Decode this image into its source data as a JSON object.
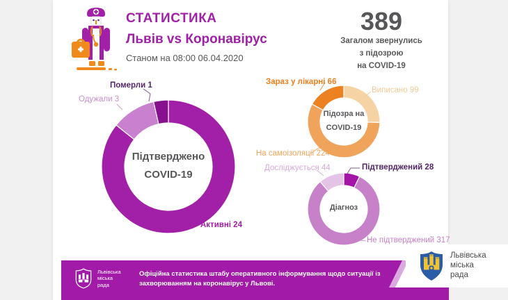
{
  "header": {
    "title": "СТАТИСТИКА",
    "subtitle": "Львів vs Коронавірус",
    "date_line": "Станом на 08:00 06.04.2020",
    "icon": "doctor-icon"
  },
  "total": {
    "value": "389",
    "caption_lines": [
      "Загалом звернулись",
      "з підозрою",
      "на COVID-19"
    ]
  },
  "chart_data": [
    {
      "type": "pie",
      "name": "confirmed-covid19-donut",
      "center_label": [
        "Підтверджено",
        "COVID-19"
      ],
      "total": 28,
      "legend_position": "outside-callouts",
      "slices": [
        {
          "label": "Активні",
          "value": 24,
          "color": "#A120A7",
          "label_text": "Активні 24",
          "label_color": "#A120A7"
        },
        {
          "label": "Одужали",
          "value": 3,
          "color": "#C980CE",
          "label_text": "Одужали 3",
          "label_color": "#C98FCE"
        },
        {
          "label": "Померли",
          "value": 1,
          "color": "#87108E",
          "label_text": "Померли 1",
          "label_color": "#53256B"
        }
      ]
    },
    {
      "type": "pie",
      "name": "suspicion-covid19-donut",
      "center_label": [
        "Підозра на",
        "COVID-19"
      ],
      "total": 389,
      "legend_position": "outside-callouts",
      "slices": [
        {
          "label": "Виписано",
          "value": 99,
          "color": "#F6D3A4",
          "label_text": "Виписано 99",
          "label_color": "#F3CA96"
        },
        {
          "label": "На самоізоляції",
          "value": 224,
          "color": "#F0A45B",
          "label_text": "На самоізоляції 224",
          "label_color": "#F0A45B"
        },
        {
          "label": "Зараз у лікарні",
          "value": 66,
          "color": "#EC8121",
          "label_text": "Зараз у лікарні 66",
          "label_color": "#EC8121"
        }
      ]
    },
    {
      "type": "pie",
      "name": "diagnosis-donut",
      "center_label": [
        "Діагноз"
      ],
      "total": 389,
      "legend_position": "outside-callouts",
      "slices": [
        {
          "label": "Підтверджений",
          "value": 28,
          "color": "#A414A6",
          "label_text": "Підтверджений 28",
          "label_color": "#53256B"
        },
        {
          "label": "Не підтверджений",
          "value": 317,
          "color": "#C781C8",
          "label_text": "Не підтверджений 317",
          "label_color": "#C781C8"
        },
        {
          "label": "Досліджується",
          "value": 44,
          "color": "#E4C4E6",
          "label_text": "Досліджується 44",
          "label_color": "#D7ABDB"
        }
      ]
    }
  ],
  "footer": {
    "disclaimer": "Офіційна статистика штабу оперативного інформування щодо ситуації із захворюванням на коронавірус у Львові.",
    "logo_text_lines": [
      "Львівська",
      "міська",
      "рада"
    ],
    "bar_color": "#A21BA8",
    "stripe_color": "#D9A9DF"
  },
  "corner_logo": {
    "text_lines": [
      "Львівська",
      "міська",
      "рада"
    ],
    "shield_blue": "#2B5CA7",
    "shield_yellow": "#F2C230"
  },
  "colors": {
    "background": "#F1F1F2",
    "card": "#FFFFFF",
    "accent_purple": "#A120A7",
    "accent_orange": "#F0A45B",
    "text_dark": "#58585B"
  }
}
